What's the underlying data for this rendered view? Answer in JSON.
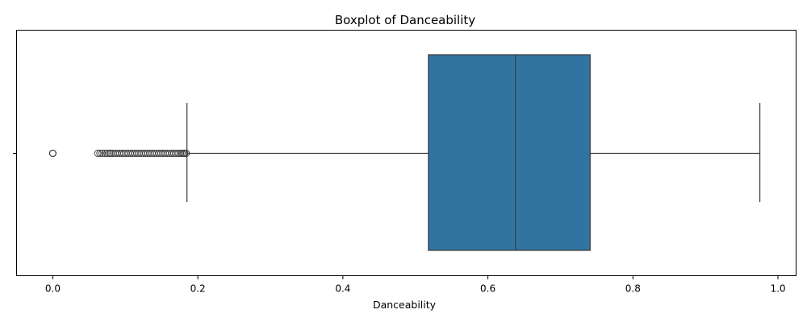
{
  "chart_data": {
    "type": "boxplot",
    "orientation": "horizontal",
    "title": "Boxplot of Danceability",
    "xlabel": "Danceability",
    "ylabel": "",
    "xlim": [
      -0.05,
      1.025
    ],
    "xticks": [
      {
        "value": 0.0,
        "label": "0.0"
      },
      {
        "value": 0.2,
        "label": "0.2"
      },
      {
        "value": 0.4,
        "label": "0.4"
      },
      {
        "value": 0.6,
        "label": "0.6"
      },
      {
        "value": 0.8,
        "label": "0.8"
      },
      {
        "value": 1.0,
        "label": "1.0"
      }
    ],
    "grid": false,
    "box": {
      "whisker_low": 0.185,
      "q1": 0.518,
      "median": 0.638,
      "q3": 0.741,
      "whisker_high": 0.975
    },
    "outliers": [
      0.0,
      0.0,
      0.0,
      0.062,
      0.065,
      0.068,
      0.072,
      0.075,
      0.078,
      0.08,
      0.083,
      0.086,
      0.089,
      0.092,
      0.095,
      0.098,
      0.101,
      0.104,
      0.107,
      0.11,
      0.113,
      0.116,
      0.119,
      0.122,
      0.125,
      0.128,
      0.131,
      0.134,
      0.137,
      0.14,
      0.143,
      0.146,
      0.149,
      0.152,
      0.155,
      0.158,
      0.161,
      0.164,
      0.167,
      0.17,
      0.173,
      0.176,
      0.178,
      0.18,
      0.182,
      0.184
    ],
    "colors": {
      "box_fill": "#3274a1",
      "line": "#3d3d3d",
      "axes": "#000000"
    }
  }
}
